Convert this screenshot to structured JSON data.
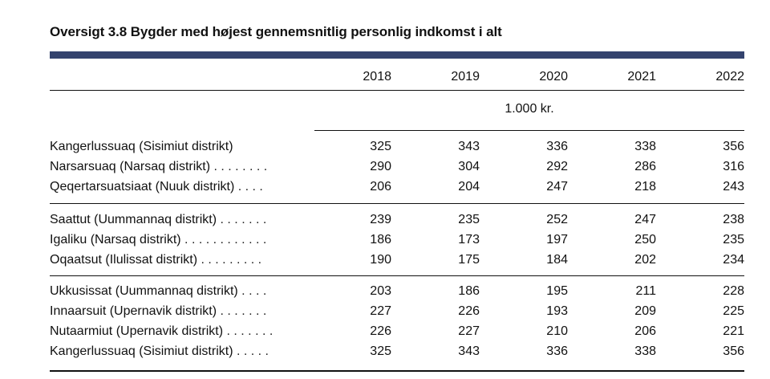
{
  "title": "Oversigt 3.8 Bygder med højest gennemsnitlig personlig indkomst i alt",
  "years": [
    "2018",
    "2019",
    "2020",
    "2021",
    "2022"
  ],
  "unit": "1.000 kr.",
  "rows": [
    {
      "label": "Kangerlussuaq (Sisimiut distrikt)",
      "dots": "",
      "values": [
        "325",
        "343",
        "336",
        "338",
        "356"
      ]
    },
    {
      "label": "Narsarsuaq (Narsaq distrikt)",
      "dots": " . . . . . . . .",
      "values": [
        "290",
        "304",
        "292",
        "286",
        "316"
      ]
    },
    {
      "label": "Qeqertarsuatsiaat (Nuuk distrikt)",
      "dots": " . . . .",
      "values": [
        "206",
        "204",
        "247",
        "218",
        "243"
      ]
    },
    {
      "label": "Saattut (Uummannaq distrikt)",
      "dots": " . . . . . . .",
      "values": [
        "239",
        "235",
        "252",
        "247",
        "238"
      ]
    },
    {
      "label": "Igaliku (Narsaq distrikt)",
      "dots": " . . . . . . . . . . . .",
      "values": [
        "186",
        "173",
        "197",
        "250",
        "235"
      ]
    },
    {
      "label": "Oqaatsut (Ilulissat distrikt)",
      "dots": " . . . . . . . . .",
      "values": [
        "190",
        "175",
        "184",
        "202",
        "234"
      ]
    },
    {
      "label": "Ukkusissat (Uummannaq distrikt)",
      "dots": " . . . .",
      "values": [
        "203",
        "186",
        "195",
        "211",
        "228"
      ]
    },
    {
      "label": "Innaarsuit (Upernavik distrikt)",
      "dots": " . . . . . . .",
      "values": [
        "227",
        "226",
        "193",
        "209",
        "225"
      ]
    },
    {
      "label": "Nutaarmiut (Upernavik distrikt)",
      "dots": " . . . . . . .",
      "values": [
        "226",
        "227",
        "210",
        "206",
        "221"
      ]
    },
    {
      "label": "Kangerlussuaq (Sisimiut distrikt)",
      "dots": " . . . . .",
      "values": [
        "325",
        "343",
        "336",
        "338",
        "356"
      ]
    }
  ]
}
